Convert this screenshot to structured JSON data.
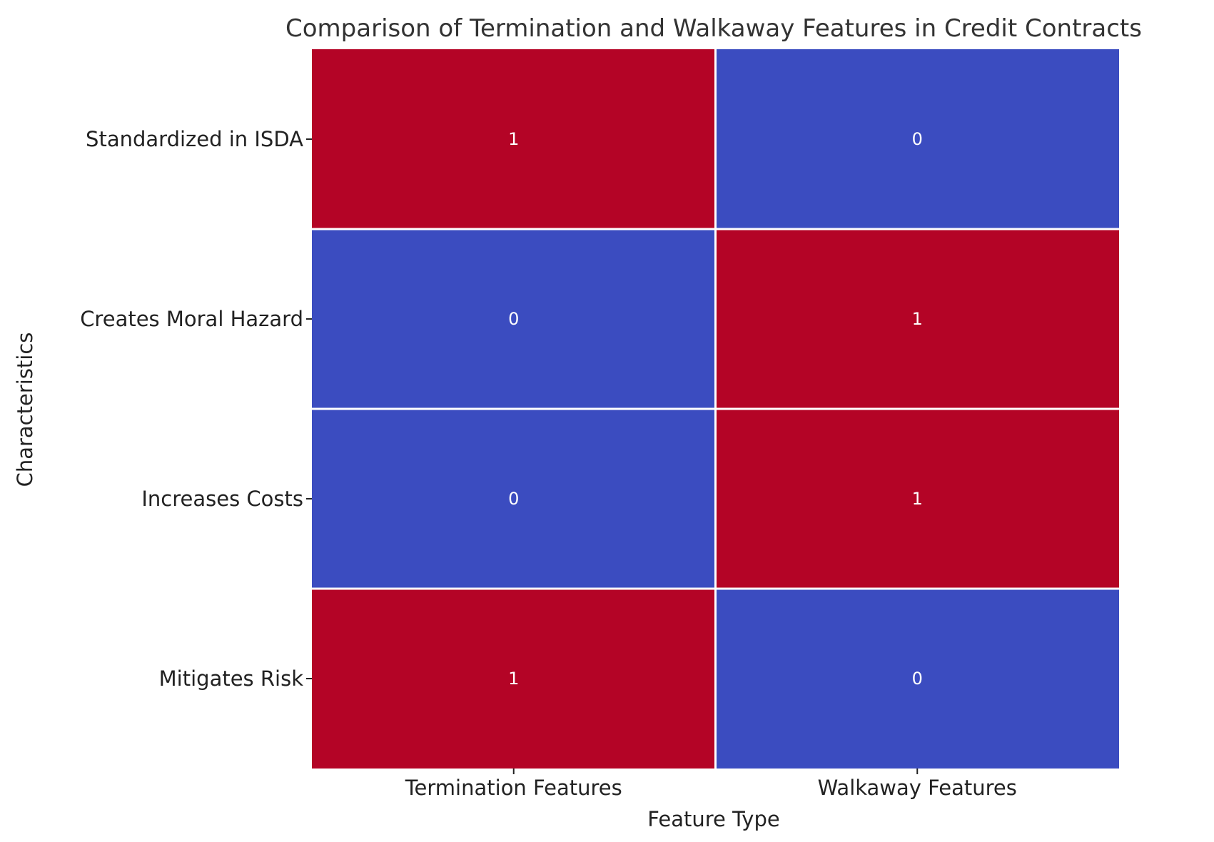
{
  "chart_data": {
    "type": "heatmap",
    "title": "Comparison of Termination and Walkaway Features in Credit Contracts",
    "xlabel": "Feature Type",
    "ylabel": "Characteristics",
    "x_categories": [
      "Termination Features",
      "Walkaway Features"
    ],
    "y_categories": [
      "Standardized in ISDA",
      "Creates Moral Hazard",
      "Increases Costs",
      "Mitigates Risk"
    ],
    "values": [
      [
        1,
        0
      ],
      [
        0,
        1
      ],
      [
        0,
        1
      ],
      [
        1,
        0
      ]
    ],
    "value_labels": [
      [
        "1",
        "0"
      ],
      [
        "0",
        "1"
      ],
      [
        "0",
        "1"
      ],
      [
        "1",
        "0"
      ]
    ],
    "colorscale": {
      "min_value": 0,
      "max_value": 1,
      "min_color": "#3b4cc0",
      "max_color": "#b40426"
    },
    "grid_color": "#ffffff",
    "colorbar": false
  }
}
